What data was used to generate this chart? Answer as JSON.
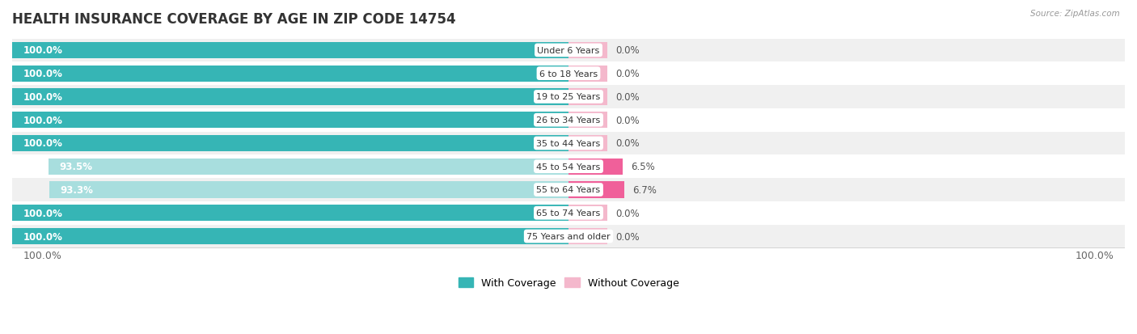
{
  "title": "HEALTH INSURANCE COVERAGE BY AGE IN ZIP CODE 14754",
  "source": "Source: ZipAtlas.com",
  "categories": [
    "Under 6 Years",
    "6 to 18 Years",
    "19 to 25 Years",
    "26 to 34 Years",
    "35 to 44 Years",
    "45 to 54 Years",
    "55 to 64 Years",
    "65 to 74 Years",
    "75 Years and older"
  ],
  "with_coverage": [
    100.0,
    100.0,
    100.0,
    100.0,
    100.0,
    93.5,
    93.3,
    100.0,
    100.0
  ],
  "without_coverage": [
    0.0,
    0.0,
    0.0,
    0.0,
    0.0,
    6.5,
    6.7,
    0.0,
    0.0
  ],
  "color_with_full": "#36b5b5",
  "color_with_partial": "#a8dede",
  "color_without_small": "#f4b8cc",
  "color_without_large": "#f0609a",
  "title_fontsize": 12,
  "label_fontsize": 8.5,
  "legend_fontsize": 9,
  "source_fontsize": 7.5
}
